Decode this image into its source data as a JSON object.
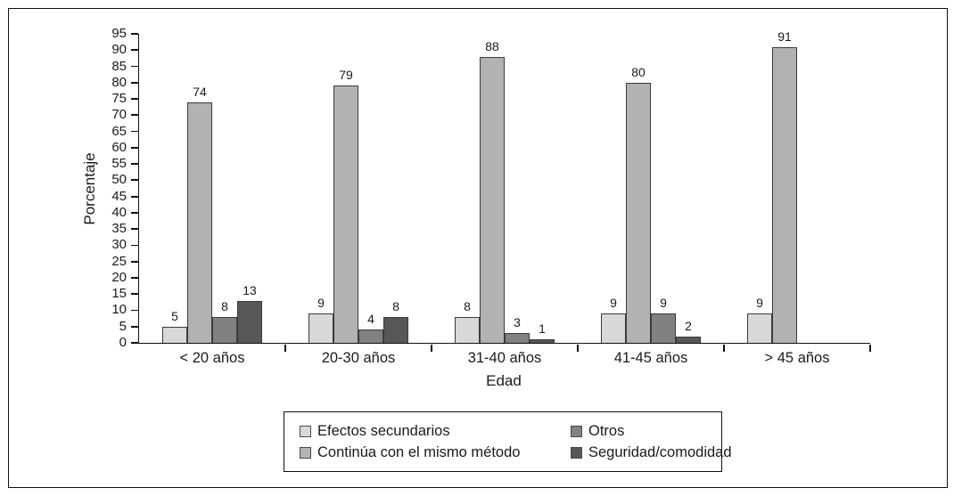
{
  "chart_data": {
    "type": "bar",
    "title": "",
    "xlabel": "Edad",
    "ylabel": "Porcentaje",
    "ylim": [
      0,
      95
    ],
    "ytick_step": 5,
    "grid": false,
    "legend_position": "bottom",
    "categories": [
      "< 20 años",
      "20-30 años",
      "31-40 años",
      "41-45 años",
      "> 45 años"
    ],
    "series": [
      {
        "name": "Efectos secundarios",
        "color": "#d8d8d8",
        "values": [
          5,
          9,
          8,
          9,
          9
        ]
      },
      {
        "name": "Continúa con el mismo método",
        "color": "#b2b2b2",
        "values": [
          74,
          79,
          88,
          80,
          91
        ]
      },
      {
        "name": "Otros",
        "color": "#818181",
        "values": [
          8,
          4,
          3,
          9,
          0
        ]
      },
      {
        "name": "Seguridad/comodidad",
        "color": "#575757",
        "values": [
          13,
          8,
          1,
          2,
          0
        ]
      }
    ],
    "axis_color": "#111111",
    "bar_border_color": "#3a3a3a"
  }
}
